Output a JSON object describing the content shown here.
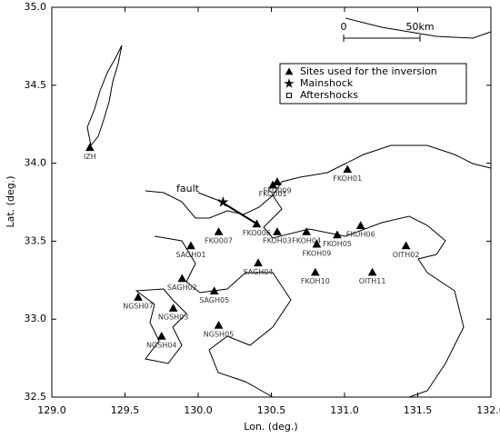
{
  "chart_data": {
    "type": "map",
    "xlabel": "Lon. (deg.)",
    "ylabel": "Lat. (deg.)",
    "xlim": [
      129.0,
      132.0
    ],
    "ylim": [
      32.5,
      35.0
    ],
    "xticks": [
      {
        "value": 129,
        "label": "129.0"
      },
      {
        "value": 129.5,
        "label": "129.5"
      },
      {
        "value": 130,
        "label": "130.0"
      },
      {
        "value": 130.5,
        "label": "130.5"
      },
      {
        "value": 131,
        "label": "131.0"
      },
      {
        "value": 131.5,
        "label": "131.5"
      },
      {
        "value": 132,
        "label": "132.0"
      }
    ],
    "yticks": [
      {
        "value": 32.5,
        "label": "32.5"
      },
      {
        "value": 33,
        "label": "33.0"
      },
      {
        "value": 33.5,
        "label": "33.5"
      },
      {
        "value": 34,
        "label": "34.0"
      },
      {
        "value": 34.5,
        "label": "34.5"
      },
      {
        "value": 35,
        "label": "35.0"
      }
    ],
    "grid": false,
    "legend": "upper right",
    "annotation": "fault",
    "scale_bar": {
      "start_label": "0",
      "end_label": "50km"
    },
    "series": [
      {
        "name": "Sites used for the inversion",
        "marker": "triangle",
        "color": "#000000",
        "labels": [
          "IZH",
          "FKO001",
          "FKO009",
          "FKOH01",
          "FKO006",
          "FKO007",
          "FKOH03",
          "FKOH04",
          "FKOH05",
          "FKOH06",
          "FKOH09",
          "SAGH01",
          "SAGH04",
          "OITH02",
          "FKOH10",
          "OITH11",
          "SAGH02",
          "SAGH05",
          "NGSH07",
          "NGSH03",
          "NGSH04",
          "NGSH05"
        ],
        "x": [
          129.26,
          130.51,
          130.54,
          131.02,
          130.4,
          130.14,
          130.54,
          130.74,
          130.95,
          131.11,
          130.81,
          129.95,
          130.41,
          131.42,
          130.8,
          131.19,
          129.89,
          130.11,
          129.59,
          129.83,
          129.75,
          130.14
        ],
        "y": [
          34.1,
          33.86,
          33.88,
          33.96,
          33.61,
          33.56,
          33.56,
          33.56,
          33.54,
          33.6,
          33.48,
          33.47,
          33.36,
          33.47,
          33.3,
          33.3,
          33.26,
          33.18,
          33.14,
          33.07,
          32.89,
          32.96
        ]
      },
      {
        "name": "Mainshock",
        "marker": "star",
        "color": "#000000",
        "x": [
          130.17
        ],
        "y": [
          33.75
        ]
      },
      {
        "name": "Aftershocks",
        "marker": "square",
        "color": "#000000",
        "x": [],
        "y": []
      }
    ]
  }
}
